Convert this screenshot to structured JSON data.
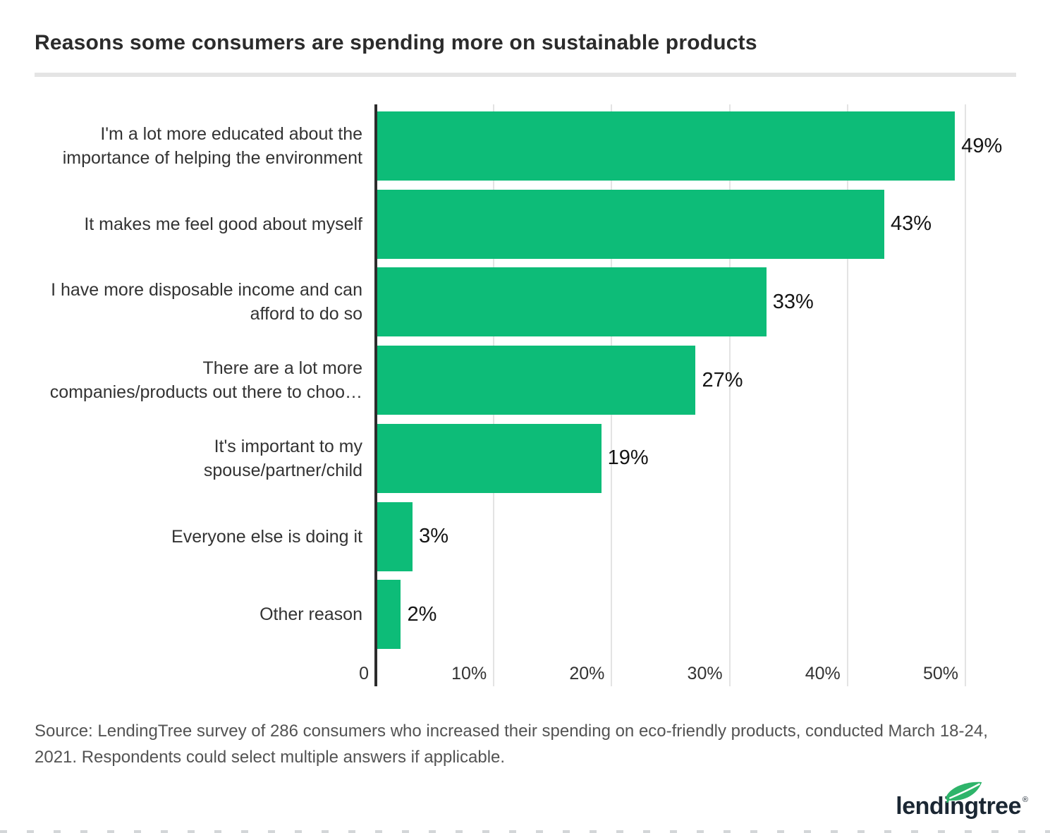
{
  "title": "Reasons some consumers are spending more on sustainable products",
  "chart_data": {
    "type": "bar",
    "orientation": "horizontal",
    "title": "Reasons some consumers are spending more on sustainable products",
    "categories": [
      "I'm a lot more educated about the importance of helping the environment",
      "It makes me feel good about myself",
      "I have more disposable income and can afford to do so",
      "There are a lot more companies/products out there to choo…",
      "It's important to my spouse/partner/child",
      "Everyone else is doing it",
      "Other reason"
    ],
    "category_lines": [
      [
        "I'm a lot more educated about the",
        "importance of helping the environment"
      ],
      [
        "It makes me feel good about myself"
      ],
      [
        "I have more disposable income and can",
        "afford to do so"
      ],
      [
        "There are a lot more",
        "companies/products out there to choo…"
      ],
      [
        "It's important to my",
        "spouse/partner/child"
      ],
      [
        "Everyone else is doing it"
      ],
      [
        "Other reason"
      ]
    ],
    "values": [
      49,
      43,
      33,
      27,
      19,
      3,
      2
    ],
    "value_labels": [
      "49%",
      "43%",
      "33%",
      "27%",
      "19%",
      "3%",
      "2%"
    ],
    "x_ticks": [
      "0",
      "10%",
      "20%",
      "30%",
      "40%",
      "50%"
    ],
    "x_tick_values": [
      0,
      10,
      20,
      30,
      40,
      50
    ],
    "xlim": [
      0,
      50
    ],
    "xlabel": "",
    "ylabel": "",
    "grid": true,
    "legend": false,
    "bar_color": "#0dbc78",
    "axis_color": "#2d2d2d",
    "gridline_color": "#e3e3e3"
  },
  "source": {
    "lines": [
      "Source: LendingTree survey of 286 consumers who increased their spending on eco-friendly products, conducted March 18-24,",
      "2021. Respondents could select multiple answers if applicable."
    ]
  },
  "logo": {
    "text": "lendingtree",
    "registered": "®",
    "text_color": "#1b2733",
    "leaf_color": "#2eb46a"
  },
  "colors": {
    "bar_green": "#0dbc78",
    "title_text": "#2b2b2b",
    "divider": "#e4e4e4",
    "source_text": "#535353"
  }
}
